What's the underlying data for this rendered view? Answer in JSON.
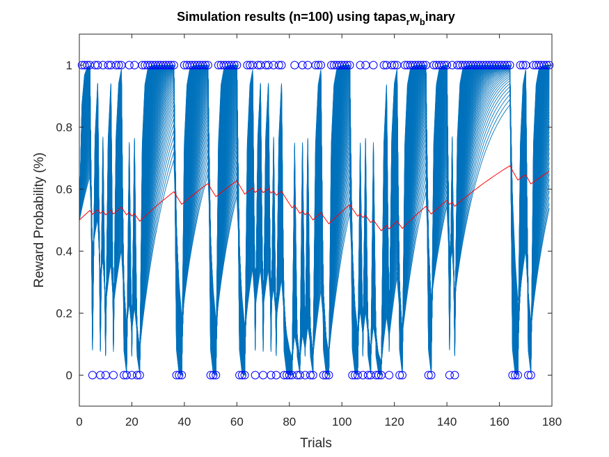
{
  "chart_data": {
    "type": "line",
    "title": {
      "main": "Simulation results (n=100) using tapas",
      "sub1": "r",
      "mid": "w",
      "sub2": "b",
      "end": "inary"
    },
    "xlabel": "Trials",
    "ylabel": "Reward Probability (%)",
    "xlim": [
      0,
      180
    ],
    "ylim": [
      -0.1,
      1.1
    ],
    "xticks": [
      0,
      20,
      40,
      60,
      80,
      100,
      120,
      140,
      160,
      180
    ],
    "yticks": [
      0,
      0.2,
      0.4,
      0.6,
      0.8,
      1
    ],
    "grid": false,
    "simulations": {
      "count": 100,
      "color": "#0072BD",
      "min_rise_rate": 0.08,
      "max_rise_rate": 0.75,
      "min_fall_rate": 0.35,
      "max_fall_rate": 0.92
    },
    "outcomes": {
      "name": "Outcomes",
      "marker": "circle",
      "color": "#0000FF",
      "values": [
        1,
        1,
        1,
        1,
        0,
        1,
        1,
        0,
        1,
        0,
        1,
        1,
        0,
        1,
        1,
        1,
        0,
        0,
        1,
        0,
        1,
        0,
        0,
        1,
        1,
        1,
        1,
        1,
        1,
        1,
        1,
        1,
        1,
        1,
        1,
        1,
        0,
        0,
        0,
        1,
        1,
        1,
        1,
        1,
        1,
        1,
        1,
        1,
        1,
        0,
        0,
        0,
        1,
        1,
        1,
        1,
        1,
        1,
        1,
        1,
        0,
        0,
        0,
        1,
        1,
        1,
        0,
        1,
        1,
        0,
        1,
        1,
        0,
        1,
        0,
        1,
        1,
        0,
        0,
        0,
        0,
        1,
        0,
        0,
        1,
        0,
        1,
        0,
        0,
        1,
        1,
        1,
        0,
        0,
        0,
        1,
        1,
        1,
        1,
        1,
        1,
        1,
        1,
        0,
        0,
        0,
        1,
        0,
        1,
        0,
        0,
        1,
        0,
        0,
        0,
        1,
        1,
        0,
        1,
        1,
        1,
        0,
        0,
        1,
        1,
        1,
        1,
        1,
        1,
        1,
        1,
        1,
        0,
        0,
        1,
        1,
        1,
        1,
        1,
        1,
        0,
        1,
        0,
        1,
        1,
        1,
        1,
        1,
        1,
        1,
        1,
        1,
        1,
        1,
        1,
        1,
        1,
        1,
        1,
        1,
        1,
        1,
        1,
        1,
        0,
        0,
        0,
        1,
        1,
        1,
        0,
        0,
        1,
        1,
        1,
        1,
        1,
        1,
        1
      ]
    },
    "mean_belief": {
      "name": "Mean trajectory",
      "color": "#FF0000",
      "start": 0.5,
      "up_step": 0.008,
      "down_step": 0.018
    }
  }
}
